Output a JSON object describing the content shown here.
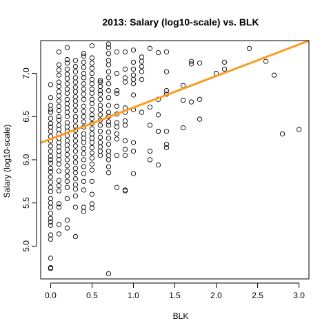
{
  "chart_data": {
    "type": "scatter",
    "title": "2013: Salary (log10-scale) vs. BLK",
    "xlabel": "BLK",
    "ylabel": "Salary (log10-scale)",
    "xlim": [
      -0.12,
      3.12
    ],
    "ylim": [
      4.62,
      7.38
    ],
    "xticks": [
      0.0,
      0.5,
      1.0,
      1.5,
      2.0,
      2.5,
      3.0
    ],
    "xtick_labels": [
      "0.0",
      "0.5",
      "1.0",
      "1.5",
      "2.0",
      "2.5",
      "3.0"
    ],
    "yticks": [
      5.0,
      5.5,
      6.0,
      6.5,
      7.0
    ],
    "ytick_labels": [
      "5.0",
      "5.5",
      "6.0",
      "6.5",
      "7.0"
    ],
    "grid": false,
    "fit_line": {
      "intercept": 6.24,
      "slope": 0.365,
      "color": "#ff9a1a"
    },
    "point_style": {
      "shape": "open-circle",
      "color": "#000000"
    },
    "points": [
      [
        0.0,
        6.87
      ],
      [
        0.0,
        6.72
      ],
      [
        0.0,
        6.63
      ],
      [
        0.0,
        6.58
      ],
      [
        0.0,
        6.55
      ],
      [
        0.0,
        6.48
      ],
      [
        0.0,
        6.42
      ],
      [
        0.0,
        6.38
      ],
      [
        0.0,
        6.33
      ],
      [
        0.0,
        6.27
      ],
      [
        0.0,
        6.22
      ],
      [
        0.0,
        6.16
      ],
      [
        0.0,
        6.1
      ],
      [
        0.0,
        6.04
      ],
      [
        0.0,
        6.0
      ],
      [
        0.0,
        5.96
      ],
      [
        0.0,
        5.9
      ],
      [
        0.0,
        5.86
      ],
      [
        0.0,
        5.8
      ],
      [
        0.0,
        5.74
      ],
      [
        0.0,
        5.68
      ],
      [
        0.0,
        5.63
      ],
      [
        0.0,
        5.55
      ],
      [
        0.0,
        5.5
      ],
      [
        0.0,
        5.45
      ],
      [
        0.0,
        5.38
      ],
      [
        0.0,
        5.32
      ],
      [
        0.0,
        5.28
      ],
      [
        0.0,
        5.24
      ],
      [
        0.0,
        5.13
      ],
      [
        0.0,
        5.08
      ],
      [
        0.0,
        4.86
      ],
      [
        0.0,
        4.75
      ],
      [
        0.0,
        4.74
      ],
      [
        0.1,
        7.25
      ],
      [
        0.1,
        7.1
      ],
      [
        0.1,
        7.04
      ],
      [
        0.1,
        6.98
      ],
      [
        0.1,
        6.9
      ],
      [
        0.1,
        6.85
      ],
      [
        0.1,
        6.79
      ],
      [
        0.1,
        6.74
      ],
      [
        0.1,
        6.68
      ],
      [
        0.1,
        6.62
      ],
      [
        0.1,
        6.57
      ],
      [
        0.1,
        6.5
      ],
      [
        0.1,
        6.46
      ],
      [
        0.1,
        6.4
      ],
      [
        0.1,
        6.35
      ],
      [
        0.1,
        6.3
      ],
      [
        0.1,
        6.25
      ],
      [
        0.1,
        6.2
      ],
      [
        0.1,
        6.15
      ],
      [
        0.1,
        6.1
      ],
      [
        0.1,
        6.05
      ],
      [
        0.1,
        6.0
      ],
      [
        0.1,
        5.95
      ],
      [
        0.1,
        5.87
      ],
      [
        0.1,
        5.76
      ],
      [
        0.1,
        5.7
      ],
      [
        0.1,
        5.64
      ],
      [
        0.1,
        5.49
      ],
      [
        0.1,
        5.45
      ],
      [
        0.1,
        5.25
      ],
      [
        0.1,
        5.14
      ],
      [
        0.2,
        7.3
      ],
      [
        0.2,
        7.16
      ],
      [
        0.2,
        7.12
      ],
      [
        0.2,
        7.05
      ],
      [
        0.2,
        6.99
      ],
      [
        0.2,
        6.94
      ],
      [
        0.2,
        6.88
      ],
      [
        0.2,
        6.82
      ],
      [
        0.2,
        6.77
      ],
      [
        0.2,
        6.7
      ],
      [
        0.2,
        6.65
      ],
      [
        0.2,
        6.6
      ],
      [
        0.2,
        6.55
      ],
      [
        0.2,
        6.5
      ],
      [
        0.2,
        6.43
      ],
      [
        0.2,
        6.38
      ],
      [
        0.2,
        6.33
      ],
      [
        0.2,
        6.28
      ],
      [
        0.2,
        6.22
      ],
      [
        0.2,
        6.17
      ],
      [
        0.2,
        6.12
      ],
      [
        0.2,
        6.06
      ],
      [
        0.2,
        6.0
      ],
      [
        0.2,
        5.93
      ],
      [
        0.2,
        5.87
      ],
      [
        0.2,
        5.81
      ],
      [
        0.2,
        5.75
      ],
      [
        0.2,
        5.68
      ],
      [
        0.2,
        5.55
      ],
      [
        0.2,
        5.3
      ],
      [
        0.2,
        5.21
      ],
      [
        0.3,
        7.15
      ],
      [
        0.3,
        7.08
      ],
      [
        0.3,
        7.02
      ],
      [
        0.3,
        6.95
      ],
      [
        0.3,
        6.9
      ],
      [
        0.3,
        6.84
      ],
      [
        0.3,
        6.79
      ],
      [
        0.3,
        6.73
      ],
      [
        0.3,
        6.68
      ],
      [
        0.3,
        6.63
      ],
      [
        0.3,
        6.57
      ],
      [
        0.3,
        6.5
      ],
      [
        0.3,
        6.45
      ],
      [
        0.3,
        6.39
      ],
      [
        0.3,
        6.34
      ],
      [
        0.3,
        6.28
      ],
      [
        0.3,
        6.22
      ],
      [
        0.3,
        6.16
      ],
      [
        0.3,
        6.1
      ],
      [
        0.3,
        6.03
      ],
      [
        0.3,
        5.97
      ],
      [
        0.3,
        5.9
      ],
      [
        0.3,
        5.85
      ],
      [
        0.3,
        5.78
      ],
      [
        0.3,
        5.71
      ],
      [
        0.3,
        5.66
      ],
      [
        0.3,
        5.58
      ],
      [
        0.3,
        5.45
      ],
      [
        0.3,
        5.11
      ],
      [
        0.4,
        7.23
      ],
      [
        0.4,
        7.2
      ],
      [
        0.4,
        7.13
      ],
      [
        0.4,
        7.07
      ],
      [
        0.4,
        7.0
      ],
      [
        0.4,
        6.95
      ],
      [
        0.4,
        6.88
      ],
      [
        0.4,
        6.82
      ],
      [
        0.4,
        6.76
      ],
      [
        0.4,
        6.7
      ],
      [
        0.4,
        6.62
      ],
      [
        0.4,
        6.56
      ],
      [
        0.4,
        6.5
      ],
      [
        0.4,
        6.44
      ],
      [
        0.4,
        6.38
      ],
      [
        0.4,
        6.3
      ],
      [
        0.4,
        6.25
      ],
      [
        0.4,
        6.2
      ],
      [
        0.4,
        6.13
      ],
      [
        0.4,
        6.07
      ],
      [
        0.4,
        6.0
      ],
      [
        0.4,
        5.92
      ],
      [
        0.4,
        5.84
      ],
      [
        0.4,
        5.75
      ],
      [
        0.4,
        5.65
      ],
      [
        0.4,
        5.45
      ],
      [
        0.4,
        5.4
      ],
      [
        0.5,
        7.32
      ],
      [
        0.5,
        7.18
      ],
      [
        0.5,
        7.12
      ],
      [
        0.5,
        7.06
      ],
      [
        0.5,
        7.0
      ],
      [
        0.5,
        6.93
      ],
      [
        0.5,
        6.88
      ],
      [
        0.5,
        6.82
      ],
      [
        0.5,
        6.77
      ],
      [
        0.5,
        6.7
      ],
      [
        0.5,
        6.65
      ],
      [
        0.5,
        6.58
      ],
      [
        0.5,
        6.52
      ],
      [
        0.5,
        6.48
      ],
      [
        0.5,
        6.42
      ],
      [
        0.5,
        6.36
      ],
      [
        0.5,
        6.3
      ],
      [
        0.5,
        6.25
      ],
      [
        0.5,
        6.2
      ],
      [
        0.5,
        6.14
      ],
      [
        0.5,
        6.08
      ],
      [
        0.5,
        6.02
      ],
      [
        0.5,
        5.95
      ],
      [
        0.5,
        5.88
      ],
      [
        0.5,
        5.75
      ],
      [
        0.5,
        5.6
      ],
      [
        0.5,
        5.49
      ],
      [
        0.5,
        5.44
      ],
      [
        0.6,
        6.92
      ],
      [
        0.6,
        6.9
      ],
      [
        0.6,
        6.85
      ],
      [
        0.6,
        6.8
      ],
      [
        0.6,
        6.76
      ],
      [
        0.6,
        6.7
      ],
      [
        0.6,
        6.63
      ],
      [
        0.6,
        6.58
      ],
      [
        0.6,
        6.52
      ],
      [
        0.6,
        6.46
      ],
      [
        0.6,
        6.4
      ],
      [
        0.6,
        6.33
      ],
      [
        0.6,
        6.26
      ],
      [
        0.6,
        6.2
      ],
      [
        0.6,
        6.15
      ],
      [
        0.6,
        6.1
      ],
      [
        0.6,
        6.05
      ],
      [
        0.7,
        7.34
      ],
      [
        0.7,
        7.3
      ],
      [
        0.7,
        7.23
      ],
      [
        0.7,
        7.15
      ],
      [
        0.7,
        7.1
      ],
      [
        0.7,
        7.02
      ],
      [
        0.7,
        6.95
      ],
      [
        0.7,
        6.88
      ],
      [
        0.7,
        6.8
      ],
      [
        0.7,
        6.72
      ],
      [
        0.7,
        6.63
      ],
      [
        0.7,
        6.55
      ],
      [
        0.7,
        6.5
      ],
      [
        0.7,
        6.44
      ],
      [
        0.7,
        6.4
      ],
      [
        0.7,
        6.32
      ],
      [
        0.7,
        6.25
      ],
      [
        0.7,
        6.18
      ],
      [
        0.7,
        6.1
      ],
      [
        0.7,
        6.05
      ],
      [
        0.7,
        6.0
      ],
      [
        0.7,
        5.92
      ],
      [
        0.7,
        5.85
      ],
      [
        0.7,
        4.68
      ],
      [
        0.8,
        7.25
      ],
      [
        0.8,
        7.0
      ],
      [
        0.8,
        6.8
      ],
      [
        0.8,
        6.77
      ],
      [
        0.8,
        6.62
      ],
      [
        0.8,
        6.53
      ],
      [
        0.8,
        6.43
      ],
      [
        0.8,
        6.38
      ],
      [
        0.8,
        6.3
      ],
      [
        0.8,
        6.24
      ],
      [
        0.8,
        6.05
      ],
      [
        0.8,
        5.68
      ],
      [
        0.9,
        7.25
      ],
      [
        0.9,
        7.05
      ],
      [
        0.9,
        6.95
      ],
      [
        0.9,
        6.9
      ],
      [
        0.9,
        6.6
      ],
      [
        0.9,
        6.55
      ],
      [
        0.9,
        6.45
      ],
      [
        0.9,
        6.4
      ],
      [
        0.9,
        6.22
      ],
      [
        0.9,
        6.12
      ],
      [
        0.9,
        6.05
      ],
      [
        0.9,
        5.65
      ],
      [
        0.9,
        5.64
      ],
      [
        1.0,
        7.27
      ],
      [
        1.0,
        7.13
      ],
      [
        1.0,
        7.05
      ],
      [
        1.0,
        6.98
      ],
      [
        1.0,
        6.93
      ],
      [
        1.0,
        6.88
      ],
      [
        1.0,
        6.75
      ],
      [
        1.0,
        6.58
      ],
      [
        1.0,
        6.2
      ],
      [
        1.0,
        6.1
      ],
      [
        1.0,
        5.84
      ],
      [
        1.1,
        7.19
      ],
      [
        1.1,
        7.14
      ],
      [
        1.1,
        7.08
      ],
      [
        1.1,
        7.02
      ],
      [
        1.1,
        6.93
      ],
      [
        1.1,
        6.55
      ],
      [
        1.2,
        7.29
      ],
      [
        1.2,
        6.61
      ],
      [
        1.2,
        6.4
      ],
      [
        1.2,
        6.1
      ],
      [
        1.2,
        6.0
      ],
      [
        1.3,
        7.24
      ],
      [
        1.3,
        6.7
      ],
      [
        1.3,
        6.52
      ],
      [
        1.3,
        6.33
      ],
      [
        1.3,
        6.33
      ],
      [
        1.3,
        5.94
      ],
      [
        1.4,
        7.25
      ],
      [
        1.4,
        7.02
      ],
      [
        1.4,
        6.8
      ],
      [
        1.4,
        6.76
      ],
      [
        1.4,
        6.33
      ],
      [
        1.4,
        6.18
      ],
      [
        1.4,
        6.14
      ],
      [
        1.6,
        6.86
      ],
      [
        1.6,
        6.69
      ],
      [
        1.6,
        6.37
      ],
      [
        1.7,
        7.14
      ],
      [
        1.7,
        7.11
      ],
      [
        1.7,
        6.67
      ],
      [
        1.8,
        7.12
      ],
      [
        1.8,
        6.7
      ],
      [
        1.8,
        6.47
      ],
      [
        2.0,
        7.0
      ],
      [
        2.1,
        7.13
      ],
      [
        2.1,
        7.05
      ],
      [
        2.4,
        7.29
      ],
      [
        2.6,
        7.14
      ],
      [
        2.7,
        6.98
      ],
      [
        2.8,
        6.3
      ],
      [
        3.0,
        6.35
      ]
    ]
  }
}
